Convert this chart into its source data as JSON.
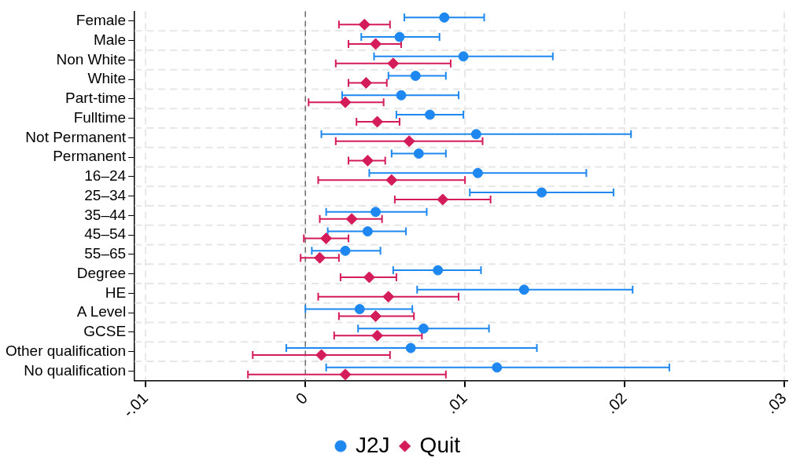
{
  "chart_data": {
    "type": "scatter",
    "orientation": "horizontal",
    "categories": [
      "Female",
      "Male",
      "Non White",
      "White",
      "Part-time",
      "Fulltime",
      "Not Permanent",
      "Permanent",
      "16–24",
      "25–34",
      "35–44",
      "45–54",
      "55–65",
      "Degree",
      "HE",
      "A Level",
      "GCSE",
      "Other qualification",
      "No qualification"
    ],
    "series": [
      {
        "name": "J2J",
        "color": "#1e88f0",
        "marker": "circle",
        "values": [
          0.0087,
          0.0059,
          0.0099,
          0.0069,
          0.006,
          0.0078,
          0.0107,
          0.0071,
          0.0108,
          0.0148,
          0.0044,
          0.0039,
          0.0025,
          0.0083,
          0.0137,
          0.0034,
          0.0074,
          0.0066,
          0.012
        ],
        "errors": [
          [
            0.0062,
            0.0112
          ],
          [
            0.0035,
            0.0084
          ],
          [
            0.0043,
            0.0155
          ],
          [
            0.0052,
            0.0088
          ],
          [
            0.0023,
            0.0096
          ],
          [
            0.0057,
            0.0099
          ],
          [
            0.001,
            0.0204
          ],
          [
            0.0054,
            0.0088
          ],
          [
            0.004,
            0.0176
          ],
          [
            0.0103,
            0.0193
          ],
          [
            0.0013,
            0.0076
          ],
          [
            0.0014,
            0.0063
          ],
          [
            0.0004,
            0.0047
          ],
          [
            0.0055,
            0.011
          ],
          [
            0.007,
            0.0205
          ],
          [
            0.0,
            0.0067
          ],
          [
            0.0033,
            0.0115
          ],
          [
            -0.0012,
            0.0145
          ],
          [
            0.0013,
            0.0228
          ]
        ]
      },
      {
        "name": "Quit",
        "color": "#d41c5a",
        "marker": "diamond",
        "values": [
          0.0037,
          0.0044,
          0.0055,
          0.0038,
          0.0025,
          0.0045,
          0.0065,
          0.0039,
          0.0054,
          0.0086,
          0.0029,
          0.0013,
          0.0009,
          0.004,
          0.0052,
          0.0044,
          0.0045,
          0.001,
          0.0025
        ],
        "errors": [
          [
            0.0021,
            0.0053
          ],
          [
            0.0027,
            0.006
          ],
          [
            0.0019,
            0.0091
          ],
          [
            0.0027,
            0.0051
          ],
          [
            0.0002,
            0.0049
          ],
          [
            0.0032,
            0.0059
          ],
          [
            0.0019,
            0.0111
          ],
          [
            0.0027,
            0.005
          ],
          [
            0.0008,
            0.01
          ],
          [
            0.0056,
            0.0116
          ],
          [
            0.0009,
            0.0048
          ],
          [
            -0.0001,
            0.0027
          ],
          [
            -0.0003,
            0.0021
          ],
          [
            0.0022,
            0.0057
          ],
          [
            0.0008,
            0.0096
          ],
          [
            0.0021,
            0.0068
          ],
          [
            0.0018,
            0.0073
          ],
          [
            -0.0033,
            0.0053
          ],
          [
            -0.0036,
            0.0088
          ]
        ]
      }
    ],
    "xlim": [
      -0.0107,
      0.0302
    ],
    "xticks": [
      {
        "value": -0.01,
        "label": "-.01"
      },
      {
        "value": 0,
        "label": "0"
      },
      {
        "value": 0.01,
        "label": ".01"
      },
      {
        "value": 0.02,
        "label": ".02"
      },
      {
        "value": 0.03,
        "label": ".03"
      }
    ],
    "ref_lines": [
      {
        "axis": "x",
        "value": 0,
        "color": "#6e6e6e",
        "line_style": "dashed"
      }
    ],
    "grid": true,
    "legend": "bottom"
  }
}
